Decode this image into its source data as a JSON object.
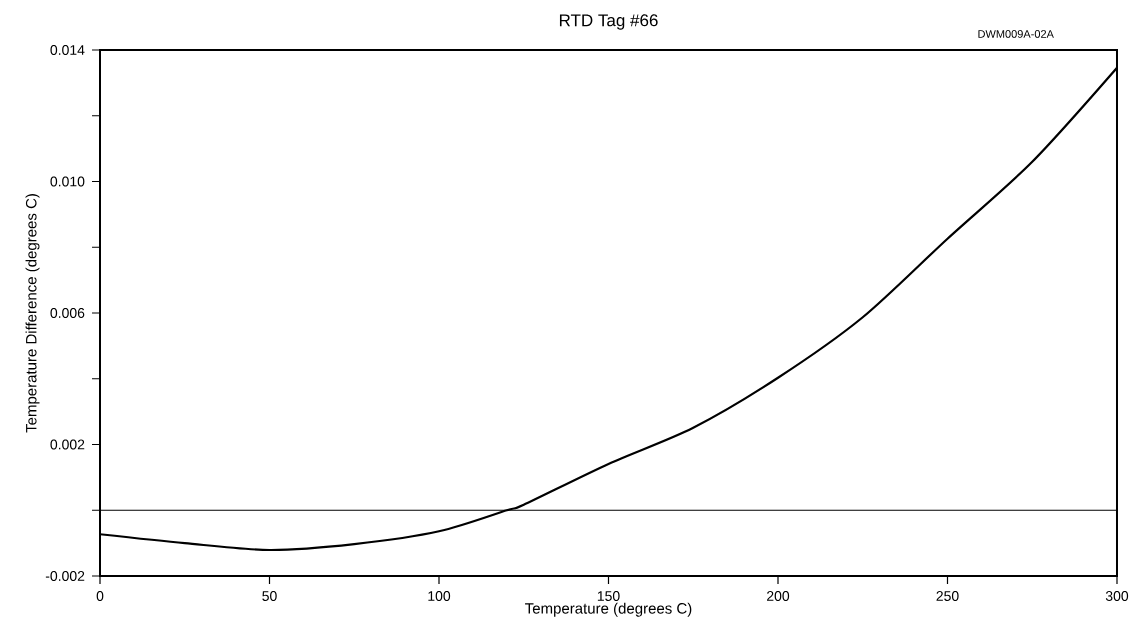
{
  "chart_data": {
    "type": "line",
    "title": "RTD Tag #66",
    "xlabel": "Temperature (degrees C)",
    "ylabel": "Temperature Difference (degrees C)",
    "annotations": [
      "DWM009A-02A"
    ],
    "x": [
      0,
      25,
      50,
      75,
      100,
      120,
      125,
      150,
      175,
      200,
      225,
      250,
      275,
      300
    ],
    "series": [
      {
        "color": "#000000",
        "values": [
          -0.00073,
          -0.001,
          -0.00121,
          -0.00103,
          -0.00064,
          0.0,
          0.00017,
          0.00141,
          0.00251,
          0.00403,
          0.00587,
          0.00826,
          0.0106,
          0.01346
        ]
      }
    ],
    "xlim": [
      0,
      300
    ],
    "xticks": [
      0,
      50,
      100,
      150,
      200,
      250,
      300
    ],
    "ylim": [
      -0.002,
      0.014
    ],
    "yticks": [
      -0.002,
      {
        "value": 0.0,
        "label": null
      },
      0.002,
      {
        "value": 0.004,
        "label": null
      },
      0.006,
      {
        "value": 0.008,
        "label": null
      },
      {
        "value": 0.01,
        "label": "0.010"
      },
      {
        "value": 0.012,
        "label": null
      },
      0.014
    ],
    "ref_lines": [
      {
        "axis": "y",
        "value": 0.0,
        "color": "#000000"
      }
    ],
    "grid": false,
    "marker": "none",
    "line_style": "solid"
  }
}
